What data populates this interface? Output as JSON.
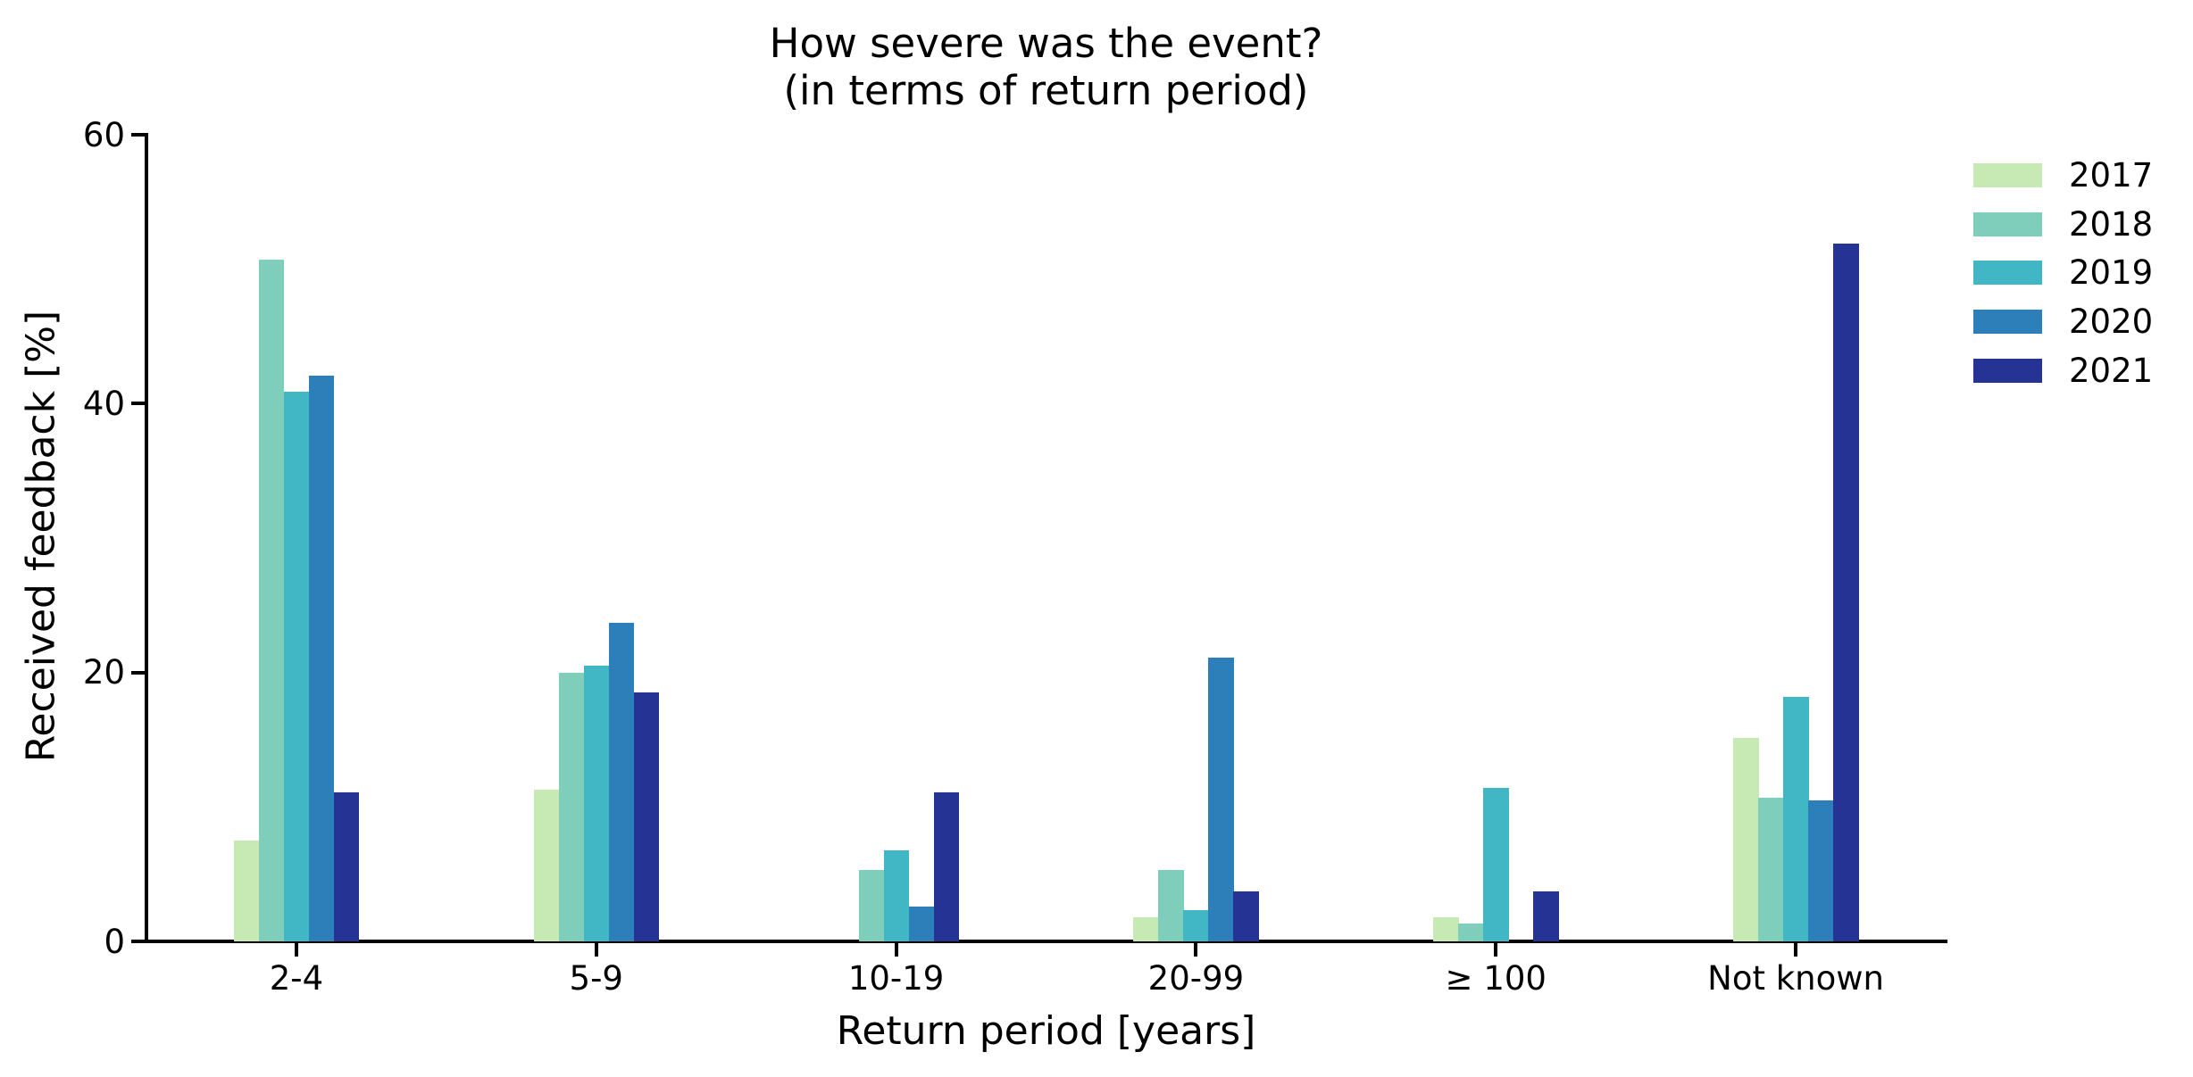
{
  "title": {
    "line1": "How severe was the event?",
    "line2": "(in terms of return period)"
  },
  "axes": {
    "ylabel": "Received feedback [%]",
    "xlabel": "Return period [years]"
  },
  "chart_data": {
    "type": "bar",
    "title": "How severe was the event? (in terms of return period)",
    "xlabel": "Return period [years]",
    "ylabel": "Received feedback [%]",
    "categories": [
      "2-4",
      "5-9",
      "10-19",
      "20-99",
      "≥ 100",
      "Not known"
    ],
    "series": [
      {
        "name": "2017",
        "color": "#c7e9b4",
        "values": [
          7.5,
          11.3,
          0,
          1.8,
          1.8,
          15.1
        ]
      },
      {
        "name": "2018",
        "color": "#7fcdbb",
        "values": [
          50.7,
          20.0,
          5.3,
          5.3,
          1.3,
          10.7
        ]
      },
      {
        "name": "2019",
        "color": "#41b6c4",
        "values": [
          40.9,
          20.5,
          6.8,
          2.3,
          11.4,
          18.2
        ]
      },
      {
        "name": "2020",
        "color": "#2c7fb8",
        "values": [
          42.1,
          23.7,
          2.6,
          21.1,
          0,
          10.5
        ]
      },
      {
        "name": "2021",
        "color": "#253494",
        "values": [
          11.1,
          18.5,
          11.1,
          3.7,
          3.7,
          51.9
        ]
      }
    ],
    "ylim": [
      0,
      60
    ],
    "yticks": [
      0,
      20,
      40,
      60
    ],
    "grid": false,
    "legend_position": "upper right, outside plot"
  }
}
